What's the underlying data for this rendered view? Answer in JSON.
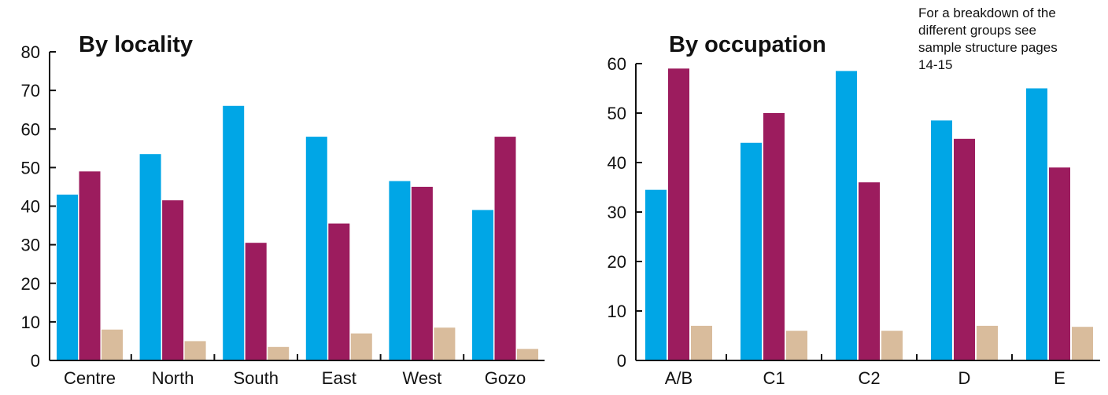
{
  "colors": {
    "series_1": "#00a6e6",
    "series_2": "#9c1c5e",
    "series_3": "#d9bc9c",
    "axis": "#111111"
  },
  "chart_data": [
    {
      "type": "bar",
      "title": "By locality",
      "categories": [
        "Centre",
        "North",
        "South",
        "East",
        "West",
        "Gozo"
      ],
      "series": [
        {
          "values": [
            43,
            53.5,
            66,
            58,
            46.5,
            39
          ]
        },
        {
          "values": [
            49,
            41.5,
            30.5,
            35.5,
            45,
            58
          ]
        },
        {
          "values": [
            8,
            5,
            3.5,
            7,
            8.5,
            3
          ]
        }
      ],
      "yticks": [
        0,
        10,
        20,
        30,
        40,
        50,
        60,
        70,
        80
      ],
      "ylim": [
        0,
        80
      ],
      "xlabel": "",
      "ylabel": "",
      "grid": false,
      "legend": "none"
    },
    {
      "type": "bar",
      "title": "By occupation",
      "categories": [
        "A/B",
        "C1",
        "C2",
        "D",
        "E"
      ],
      "series": [
        {
          "values": [
            34.5,
            44,
            58.5,
            48.5,
            55
          ]
        },
        {
          "values": [
            59,
            50,
            36,
            44.8,
            39
          ]
        },
        {
          "values": [
            7,
            6,
            6,
            7,
            6.8
          ]
        }
      ],
      "yticks": [
        0,
        10,
        20,
        30,
        40,
        50,
        60
      ],
      "ylim": [
        0,
        60
      ],
      "xlabel": "",
      "ylabel": "",
      "grid": false,
      "legend": "none"
    }
  ],
  "note": {
    "lines": [
      "For a breakdown of the",
      "different groups see",
      "sample structure pages",
      "14-15"
    ]
  }
}
